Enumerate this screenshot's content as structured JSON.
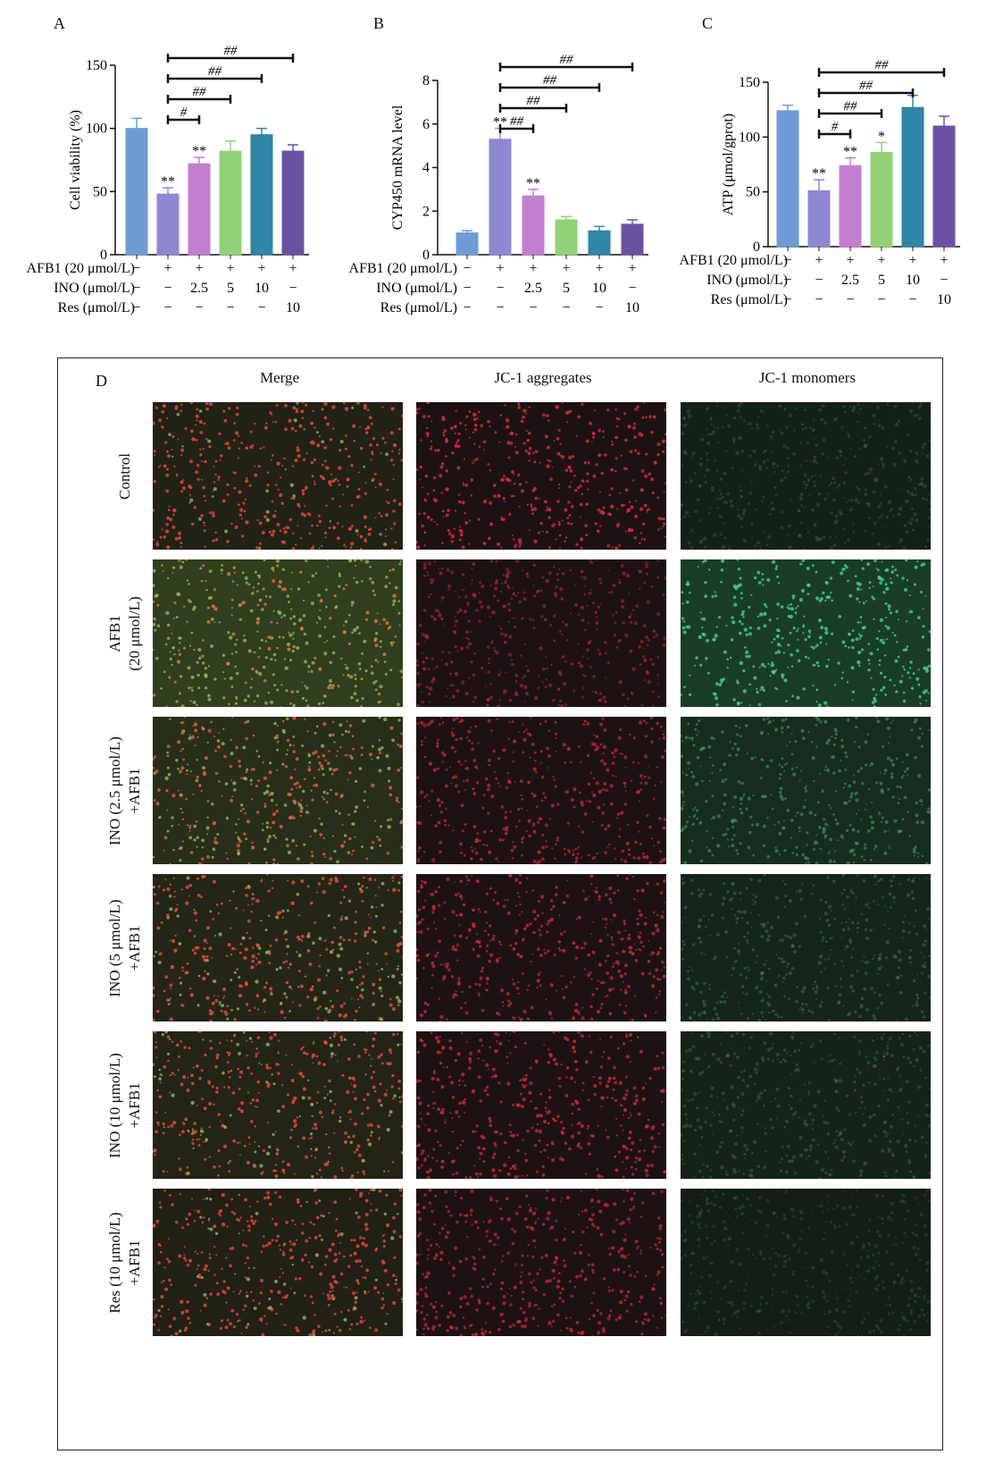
{
  "panels": {
    "A": {
      "letter": "A"
    },
    "B": {
      "letter": "B"
    },
    "C": {
      "letter": "C"
    },
    "D": {
      "letter": "D"
    }
  },
  "chart_data": [
    {
      "id": "A",
      "type": "bar",
      "ylabel": "Cell viability (%)",
      "ylim": [
        0,
        150
      ],
      "yticks": [
        0,
        50,
        100,
        150
      ],
      "values": [
        100,
        48,
        72,
        82,
        95,
        82
      ],
      "errors": [
        8,
        5,
        5,
        8,
        5,
        5
      ],
      "colors": [
        "#6e9bd4",
        "#8e88d2",
        "#c37ed1",
        "#93d279",
        "#2f86a6",
        "#6a52a3"
      ],
      "stars": [
        "",
        "**",
        "**",
        "",
        "",
        ""
      ],
      "brackets": [
        {
          "from": 1,
          "to": 2,
          "label": "#"
        },
        {
          "from": 1,
          "to": 3,
          "label": "##"
        },
        {
          "from": 1,
          "to": 4,
          "label": "##"
        },
        {
          "from": 1,
          "to": 5,
          "label": "##"
        }
      ],
      "conditions": [
        {
          "label": "AFB1 (20 μmol/L)",
          "values": [
            "−",
            "+",
            "+",
            "+",
            "+",
            "+"
          ]
        },
        {
          "label": "INO (μmol/L)",
          "values": [
            "−",
            "−",
            "2.5",
            "5",
            "10",
            "−"
          ]
        },
        {
          "label": "Res (μmol/L)",
          "values": [
            "−",
            "−",
            "−",
            "−",
            "−",
            "10"
          ]
        }
      ]
    },
    {
      "id": "B",
      "type": "bar",
      "ylabel": "CYP450 mRNA level",
      "ylim": [
        0,
        8
      ],
      "yticks": [
        0,
        2,
        4,
        6,
        8
      ],
      "values": [
        1.0,
        5.3,
        2.7,
        1.6,
        1.1,
        1.4
      ],
      "errors": [
        0.1,
        0.5,
        0.3,
        0.15,
        0.2,
        0.2
      ],
      "colors": [
        "#6e9bd4",
        "#8e88d2",
        "#c37ed1",
        "#93d279",
        "#2f86a6",
        "#6a52a3"
      ],
      "stars": [
        "",
        "**",
        "**",
        "",
        "",
        ""
      ],
      "brackets": [
        {
          "from": 1,
          "to": 2,
          "label": "##"
        },
        {
          "from": 1,
          "to": 3,
          "label": "##"
        },
        {
          "from": 1,
          "to": 4,
          "label": "##"
        },
        {
          "from": 1,
          "to": 5,
          "label": "##"
        }
      ],
      "conditions": [
        {
          "label": "AFB1 (20 μmol/L)",
          "values": [
            "−",
            "+",
            "+",
            "+",
            "+",
            "+"
          ]
        },
        {
          "label": "INO (μmol/L)",
          "values": [
            "−",
            "−",
            "2.5",
            "5",
            "10",
            "−"
          ]
        },
        {
          "label": "Res (μmol/L)",
          "values": [
            "−",
            "−",
            "−",
            "−",
            "−",
            "10"
          ]
        }
      ]
    },
    {
      "id": "C",
      "type": "bar",
      "ylabel": "ATP (μmol/gprot)",
      "ylim": [
        0,
        150
      ],
      "yticks": [
        0,
        50,
        100,
        150
      ],
      "values": [
        124,
        51,
        74,
        86,
        127,
        110
      ],
      "errors": [
        5,
        10,
        7,
        9,
        11,
        9
      ],
      "colors": [
        "#6e9bd4",
        "#8e88d2",
        "#c37ed1",
        "#93d279",
        "#2f86a6",
        "#6a52a3"
      ],
      "stars": [
        "",
        "**",
        "**",
        "*",
        "",
        ""
      ],
      "brackets": [
        {
          "from": 1,
          "to": 2,
          "label": "#"
        },
        {
          "from": 1,
          "to": 3,
          "label": "##"
        },
        {
          "from": 1,
          "to": 4,
          "label": "##"
        },
        {
          "from": 1,
          "to": 5,
          "label": "##"
        }
      ],
      "conditions": [
        {
          "label": "AFB1 (20 μmol/L)",
          "values": [
            "−",
            "+",
            "+",
            "+",
            "+",
            "+"
          ]
        },
        {
          "label": "INO (μmol/L)",
          "values": [
            "−",
            "−",
            "2.5",
            "5",
            "10",
            "−"
          ]
        },
        {
          "label": "Res (μmol/L)",
          "values": [
            "−",
            "−",
            "−",
            "−",
            "−",
            "10"
          ]
        }
      ]
    }
  ],
  "micrographs": {
    "columns": [
      "Merge",
      "JC-1 aggregates",
      "JC-1 monomers"
    ],
    "rows": [
      {
        "label": [
          "Control"
        ],
        "red": 0.9,
        "green": 0.15
      },
      {
        "label": [
          "AFB1",
          "(20 μmol/L)"
        ],
        "red": 0.3,
        "green": 0.85
      },
      {
        "label": [
          "INO (2.5 μmol/L)",
          "+AFB1"
        ],
        "red": 0.6,
        "green": 0.45
      },
      {
        "label": [
          "INO (5 μmol/L)",
          "+AFB1"
        ],
        "red": 0.65,
        "green": 0.25
      },
      {
        "label": [
          "INO (10 μmol/L)",
          "+AFB1"
        ],
        "red": 0.7,
        "green": 0.2
      },
      {
        "label": [
          "Res (10 μmol/L)",
          "+AFB1"
        ],
        "red": 0.6,
        "green": 0.1
      }
    ]
  }
}
